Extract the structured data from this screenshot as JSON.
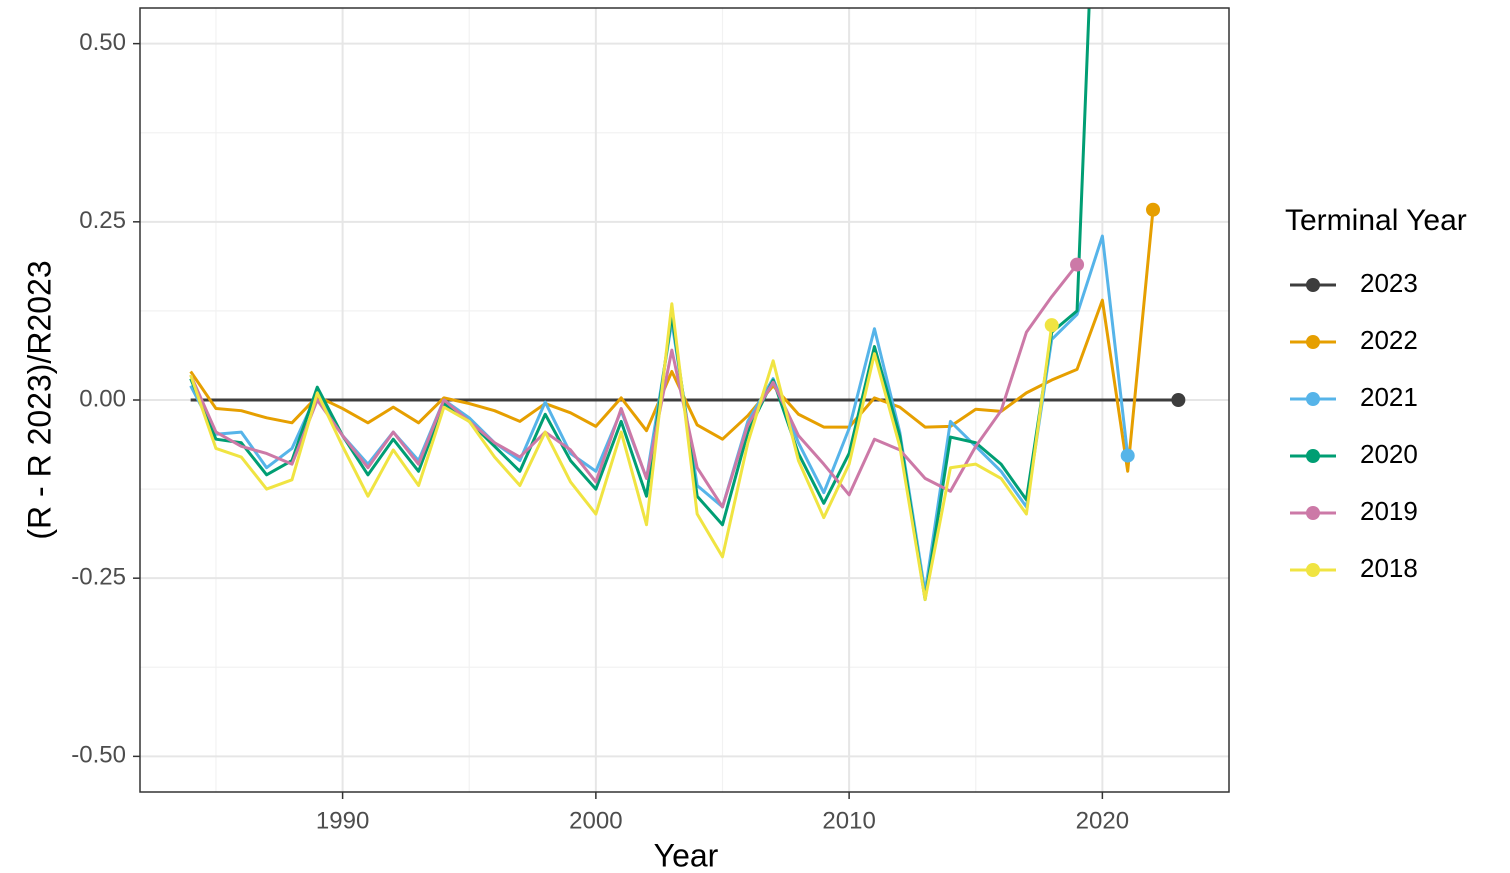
{
  "chart_data": {
    "type": "line",
    "x_label": "Year",
    "y_label": "(R - R 2023)/R2023",
    "legend_title": "Terminal Year",
    "legend_position": "right",
    "grid": true,
    "xlim": [
      1982,
      2025
    ],
    "ylim": [
      -0.55,
      0.55
    ],
    "xticks": [
      1990,
      2000,
      2010,
      2020
    ],
    "yticks": [
      {
        "value": -0.5,
        "label": "-0.50"
      },
      {
        "value": -0.25,
        "label": "-0.25"
      },
      {
        "value": 0,
        "label": "0.00"
      },
      {
        "value": 0.25,
        "label": "0.25"
      },
      {
        "value": 0.5,
        "label": "0.50"
      }
    ],
    "x": [
      1984,
      1985,
      1986,
      1987,
      1988,
      1989,
      1990,
      1991,
      1992,
      1993,
      1994,
      1995,
      1996,
      1997,
      1998,
      1999,
      2000,
      2001,
      2002,
      2003,
      2004,
      2005,
      2006,
      2007,
      2008,
      2009,
      2010,
      2011,
      2012,
      2013,
      2014,
      2015,
      2016,
      2017,
      2018,
      2019,
      2020,
      2021,
      2022,
      2023
    ],
    "series": [
      {
        "name": "2023",
        "color": "#3d3d3d",
        "values": [
          0,
          0,
          0,
          0,
          0,
          0,
          0,
          0,
          0,
          0,
          0,
          0,
          0,
          0,
          0,
          0,
          0,
          0,
          0,
          0,
          0,
          0,
          0,
          0,
          0,
          0,
          0,
          0,
          0,
          0,
          0,
          0,
          0,
          0,
          0,
          0,
          0,
          0,
          0,
          0
        ]
      },
      {
        "name": "2022",
        "color": "#E69F00",
        "values": [
          0.04,
          -0.012,
          -0.015,
          -0.025,
          -0.032,
          0.005,
          -0.012,
          -0.032,
          -0.01,
          -0.032,
          0.003,
          -0.005,
          -0.015,
          -0.03,
          -0.005,
          -0.018,
          -0.037,
          0.003,
          -0.043,
          0.04,
          -0.035,
          -0.055,
          -0.022,
          0.02,
          -0.02,
          -0.038,
          -0.038,
          0.003,
          -0.01,
          -0.038,
          -0.037,
          -0.013,
          -0.016,
          0.01,
          0.028,
          0.043,
          0.14,
          -0.1,
          0.267,
          null
        ]
      },
      {
        "name": "2021",
        "color": "#56B4E9",
        "values": [
          0.02,
          -0.048,
          -0.045,
          -0.095,
          -0.068,
          0.01,
          -0.05,
          -0.09,
          -0.045,
          -0.085,
          0,
          -0.025,
          -0.06,
          -0.085,
          -0.003,
          -0.075,
          -0.1,
          -0.015,
          -0.11,
          0.11,
          -0.12,
          -0.15,
          -0.03,
          0.03,
          -0.06,
          -0.13,
          -0.04,
          0.1,
          -0.045,
          -0.27,
          -0.03,
          -0.065,
          -0.1,
          -0.15,
          0.085,
          0.12,
          0.23,
          -0.078,
          null,
          null
        ]
      },
      {
        "name": "2020",
        "color": "#009E73",
        "values": [
          0.03,
          -0.055,
          -0.06,
          -0.105,
          -0.085,
          0.018,
          -0.05,
          -0.105,
          -0.055,
          -0.1,
          -0.005,
          -0.03,
          -0.065,
          -0.1,
          -0.02,
          -0.085,
          -0.125,
          -0.03,
          -0.135,
          0.12,
          -0.135,
          -0.175,
          -0.045,
          0.028,
          -0.075,
          -0.145,
          -0.075,
          0.075,
          -0.05,
          -0.28,
          -0.052,
          -0.06,
          -0.09,
          -0.14,
          0.095,
          0.125,
          1.02,
          null,
          null,
          null
        ]
      },
      {
        "name": "2019",
        "color": "#CC79A7",
        "values": [
          0.035,
          -0.045,
          -0.065,
          -0.075,
          -0.09,
          0,
          -0.05,
          -0.095,
          -0.045,
          -0.09,
          0,
          -0.03,
          -0.06,
          -0.08,
          -0.045,
          -0.07,
          -0.115,
          -0.012,
          -0.11,
          0.07,
          -0.095,
          -0.15,
          -0.035,
          0.025,
          -0.05,
          -0.09,
          -0.133,
          -0.055,
          -0.07,
          -0.11,
          -0.128,
          -0.065,
          -0.015,
          0.095,
          0.145,
          0.19,
          null,
          null,
          null,
          null
        ]
      },
      {
        "name": "2018",
        "color": "#F0E442",
        "values": [
          0.035,
          -0.068,
          -0.08,
          -0.125,
          -0.112,
          0.01,
          -0.065,
          -0.135,
          -0.07,
          -0.12,
          -0.01,
          -0.03,
          -0.08,
          -0.12,
          -0.045,
          -0.115,
          -0.16,
          -0.045,
          -0.175,
          0.135,
          -0.16,
          -0.22,
          -0.06,
          0.055,
          -0.085,
          -0.165,
          -0.09,
          0.065,
          -0.065,
          -0.28,
          -0.095,
          -0.09,
          -0.11,
          -0.16,
          0.105,
          null,
          null,
          null,
          null,
          null
        ]
      }
    ]
  }
}
